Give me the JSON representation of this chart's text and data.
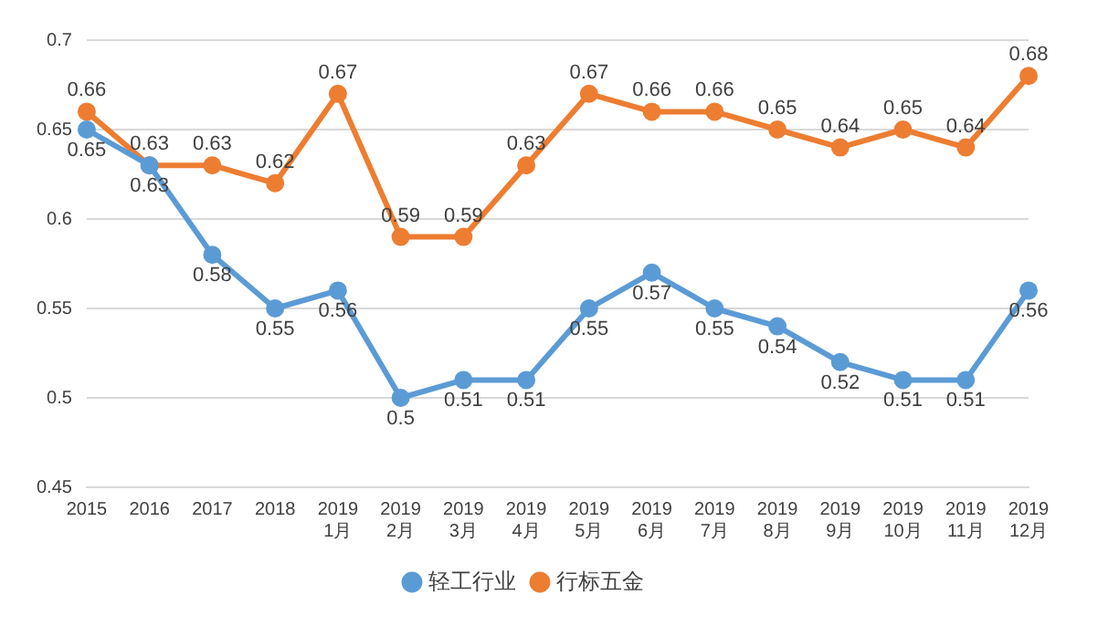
{
  "chart_data": {
    "type": "line",
    "categories": [
      "2015",
      "2016",
      "2017",
      "2018",
      "2019\n1月",
      "2019\n2月",
      "2019\n3月",
      "2019\n4月",
      "2019\n5月",
      "2019\n6月",
      "2019\n7月",
      "2019\n8月",
      "2019\n9月",
      "2019\n10月",
      "2019\n11月",
      "2019\n12月"
    ],
    "series": [
      {
        "name": "轻工行业",
        "color": "#5b9bd5",
        "values": [
          0.65,
          0.63,
          0.58,
          0.55,
          0.56,
          0.5,
          0.51,
          0.51,
          0.55,
          0.57,
          0.55,
          0.54,
          0.52,
          0.51,
          0.51,
          0.56
        ]
      },
      {
        "name": "行标五金",
        "color": "#ed7d31",
        "values": [
          0.66,
          0.63,
          0.63,
          0.62,
          0.67,
          0.59,
          0.59,
          0.63,
          0.67,
          0.66,
          0.66,
          0.65,
          0.64,
          0.65,
          0.64,
          0.68
        ]
      }
    ],
    "ylim": [
      0.45,
      0.7
    ],
    "yticks": [
      0.45,
      0.5,
      0.55,
      0.6,
      0.65,
      0.7
    ],
    "grid": "y",
    "legend": "bottom",
    "marker": "circle",
    "line_style": "solid",
    "data_labels": true
  }
}
